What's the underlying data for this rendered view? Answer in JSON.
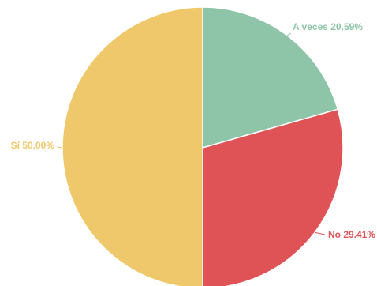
{
  "chart_data": {
    "type": "pie",
    "title": "",
    "slices": [
      {
        "label": "A veces",
        "value": 20.59,
        "value_text": "20.59%",
        "color": "#8ec4a8"
      },
      {
        "label": "No",
        "value": 29.41,
        "value_text": "29.41%",
        "color": "#df5356"
      },
      {
        "label": "Sí",
        "value": 50.0,
        "value_text": "50.00%",
        "color": "#eec86b"
      }
    ],
    "start_angle": "12 o'clock",
    "direction": "clockwise",
    "slice_border_color": "#ffffff",
    "show_legend": false,
    "label_placement": "outside with leader lines"
  }
}
